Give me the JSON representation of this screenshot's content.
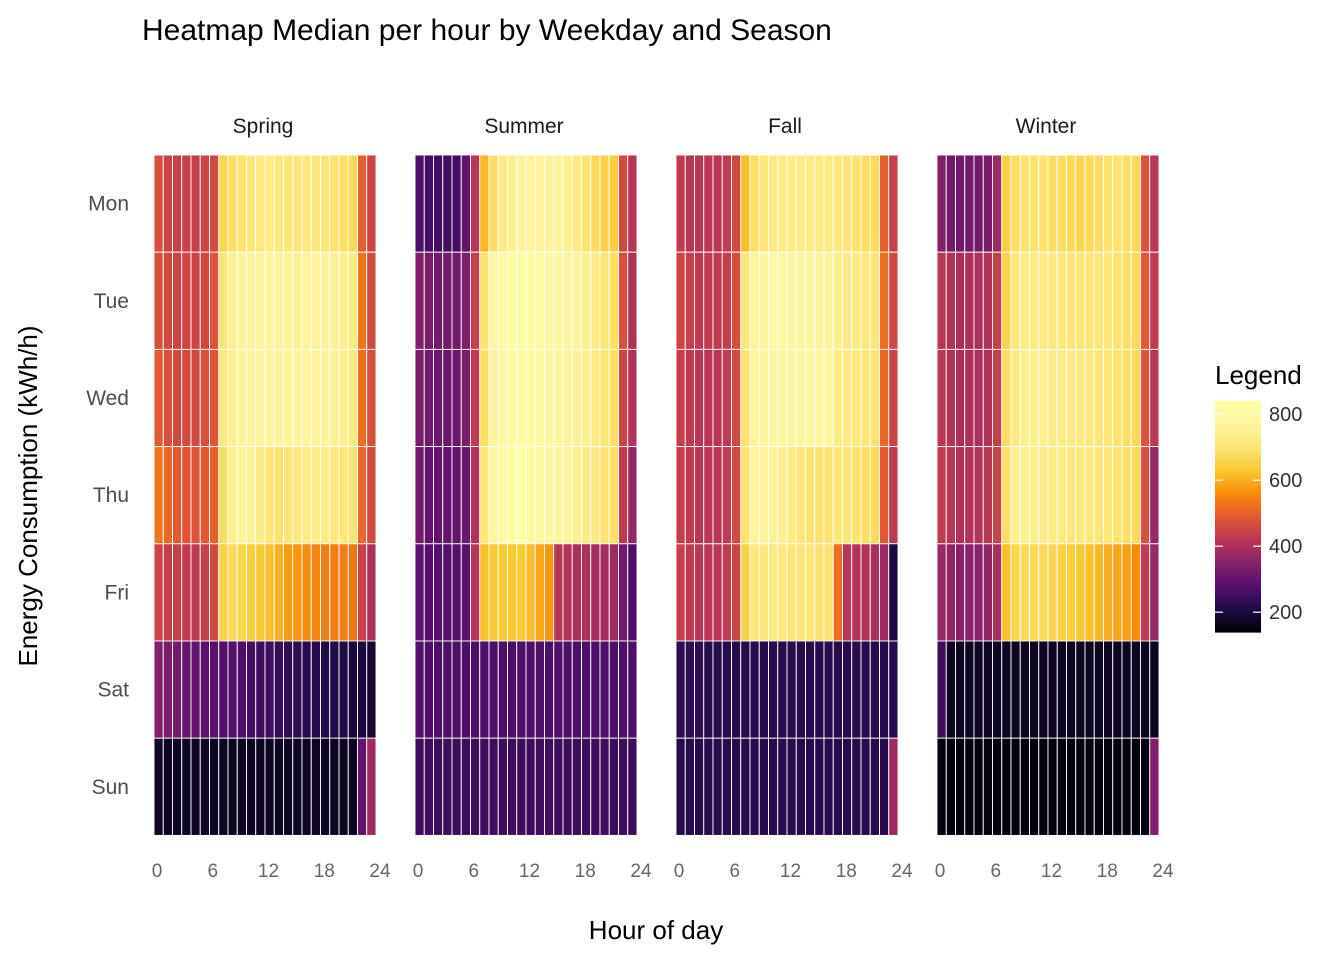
{
  "chart_data": {
    "type": "heatmap",
    "title": "Heatmap Median per hour by Weekday and Season",
    "xlabel": "Hour of day",
    "ylabel": "Energy Consumption (kWh/h)",
    "x_ticks": [
      "0",
      "6",
      "12",
      "18",
      "24"
    ],
    "x_range": [
      0,
      24
    ],
    "hours": [
      0,
      1,
      2,
      3,
      4,
      5,
      6,
      7,
      8,
      9,
      10,
      11,
      12,
      13,
      14,
      15,
      16,
      17,
      18,
      19,
      20,
      21,
      22,
      23
    ],
    "weekdays": [
      "Mon",
      "Tue",
      "Wed",
      "Thu",
      "Fri",
      "Sat",
      "Sun"
    ],
    "facets": [
      "Spring",
      "Summer",
      "Fall",
      "Winter"
    ],
    "legend": {
      "title": "Legend",
      "ticks": [
        "800",
        "600",
        "400",
        "200"
      ],
      "tick_values": [
        800,
        600,
        400,
        200
      ],
      "min": 140,
      "max": 840,
      "palette": "inferno",
      "placement": "right"
    },
    "values": {
      "Spring": {
        "Mon": [
          470,
          450,
          440,
          440,
          440,
          450,
          460,
          660,
          680,
          690,
          700,
          710,
          720,
          710,
          700,
          700,
          710,
          710,
          700,
          690,
          680,
          670,
          500,
          450
        ],
        "Tue": [
          470,
          460,
          450,
          450,
          450,
          460,
          480,
          700,
          740,
          760,
          760,
          760,
          770,
          760,
          760,
          750,
          760,
          760,
          760,
          750,
          740,
          720,
          530,
          460
        ],
        "Wed": [
          490,
          470,
          460,
          460,
          460,
          470,
          480,
          710,
          740,
          760,
          760,
          770,
          760,
          760,
          760,
          760,
          760,
          760,
          760,
          750,
          740,
          720,
          520,
          470
        ],
        "Thu": [
          530,
          510,
          490,
          480,
          480,
          490,
          500,
          680,
          740,
          760,
          750,
          720,
          700,
          690,
          700,
          710,
          720,
          730,
          720,
          710,
          700,
          690,
          510,
          460
        ],
        "Fri": [
          450,
          440,
          440,
          430,
          430,
          440,
          460,
          650,
          670,
          660,
          640,
          630,
          620,
          600,
          580,
          570,
          560,
          550,
          540,
          540,
          540,
          530,
          440,
          400
        ],
        "Sat": [
          340,
          330,
          320,
          300,
          300,
          290,
          290,
          280,
          280,
          270,
          260,
          250,
          250,
          240,
          230,
          230,
          220,
          220,
          210,
          210,
          210,
          200,
          200,
          190
        ],
        "Sun": [
          180,
          170,
          170,
          170,
          170,
          170,
          170,
          170,
          170,
          170,
          170,
          170,
          170,
          170,
          170,
          170,
          170,
          170,
          170,
          170,
          170,
          170,
          300,
          380
        ]
      },
      "Summer": {
        "Mon": [
          270,
          260,
          260,
          260,
          260,
          300,
          420,
          610,
          680,
          720,
          740,
          760,
          760,
          760,
          760,
          760,
          740,
          720,
          690,
          670,
          650,
          640,
          460,
          420
        ],
        "Tue": [
          340,
          330,
          320,
          320,
          320,
          340,
          440,
          690,
          770,
          800,
          810,
          820,
          810,
          800,
          790,
          780,
          770,
          760,
          740,
          720,
          700,
          680,
          470,
          410
        ],
        "Wed": [
          330,
          320,
          310,
          310,
          310,
          330,
          430,
          680,
          760,
          790,
          800,
          810,
          800,
          790,
          780,
          770,
          760,
          750,
          740,
          720,
          700,
          680,
          450,
          410
        ],
        "Thu": [
          320,
          300,
          300,
          300,
          300,
          310,
          410,
          700,
          770,
          800,
          820,
          840,
          800,
          790,
          780,
          770,
          760,
          740,
          730,
          710,
          690,
          680,
          430,
          370
        ],
        "Fri": [
          290,
          280,
          280,
          280,
          280,
          290,
          420,
          620,
          630,
          630,
          630,
          630,
          620,
          590,
          570,
          420,
          410,
          400,
          400,
          390,
          390,
          380,
          320,
          270
        ],
        "Sat": [
          280,
          270,
          270,
          270,
          270,
          270,
          270,
          270,
          270,
          270,
          270,
          270,
          270,
          270,
          270,
          270,
          270,
          270,
          270,
          270,
          270,
          270,
          270,
          270
        ],
        "Sun": [
          250,
          250,
          250,
          250,
          250,
          250,
          250,
          250,
          250,
          250,
          250,
          250,
          250,
          250,
          250,
          250,
          250,
          250,
          250,
          250,
          250,
          250,
          250,
          250
        ]
      },
      "Fall": {
        "Mon": [
          430,
          420,
          420,
          420,
          420,
          430,
          460,
          620,
          680,
          700,
          710,
          720,
          720,
          720,
          720,
          720,
          720,
          710,
          700,
          690,
          680,
          670,
          500,
          440
        ],
        "Tue": [
          450,
          440,
          430,
          430,
          430,
          440,
          470,
          700,
          760,
          780,
          800,
          790,
          780,
          780,
          770,
          770,
          770,
          740,
          730,
          720,
          710,
          700,
          520,
          460
        ],
        "Wed": [
          440,
          430,
          420,
          420,
          420,
          430,
          460,
          690,
          760,
          780,
          780,
          780,
          780,
          780,
          780,
          780,
          780,
          730,
          720,
          710,
          700,
          690,
          510,
          450
        ],
        "Thu": [
          440,
          430,
          420,
          420,
          420,
          430,
          460,
          690,
          760,
          760,
          750,
          740,
          720,
          700,
          690,
          690,
          690,
          700,
          700,
          690,
          680,
          670,
          490,
          430
        ],
        "Fri": [
          440,
          430,
          420,
          420,
          420,
          430,
          450,
          650,
          700,
          710,
          710,
          710,
          700,
          700,
          700,
          690,
          690,
          520,
          420,
          410,
          410,
          400,
          380,
          200
        ],
        "Sat": [
          230,
          230,
          230,
          220,
          220,
          220,
          220,
          220,
          220,
          220,
          220,
          220,
          220,
          220,
          220,
          220,
          220,
          220,
          220,
          220,
          220,
          220,
          220,
          220
        ],
        "Sun": [
          220,
          220,
          220,
          220,
          220,
          220,
          220,
          220,
          220,
          220,
          220,
          220,
          220,
          220,
          220,
          220,
          220,
          220,
          220,
          220,
          220,
          220,
          220,
          380
        ]
      },
      "Winter": {
        "Mon": [
          340,
          320,
          320,
          320,
          320,
          330,
          380,
          650,
          680,
          690,
          690,
          690,
          680,
          680,
          670,
          660,
          670,
          680,
          690,
          690,
          680,
          670,
          480,
          420
        ],
        "Tue": [
          420,
          410,
          400,
          400,
          400,
          410,
          440,
          660,
          710,
          720,
          720,
          720,
          710,
          710,
          700,
          700,
          700,
          700,
          700,
          690,
          680,
          670,
          490,
          430
        ],
        "Wed": [
          420,
          410,
          400,
          400,
          400,
          410,
          440,
          680,
          720,
          740,
          740,
          740,
          730,
          730,
          720,
          720,
          710,
          700,
          700,
          690,
          680,
          670,
          480,
          420
        ],
        "Thu": [
          430,
          420,
          410,
          410,
          410,
          420,
          450,
          680,
          740,
          740,
          740,
          730,
          720,
          720,
          710,
          710,
          710,
          700,
          700,
          690,
          680,
          670,
          470,
          370
        ],
        "Fri": [
          370,
          360,
          350,
          350,
          350,
          360,
          400,
          620,
          660,
          670,
          670,
          670,
          660,
          650,
          640,
          630,
          620,
          610,
          600,
          590,
          580,
          560,
          430,
          370
        ],
        "Sat": [
          250,
          170,
          170,
          170,
          170,
          170,
          170,
          170,
          170,
          170,
          170,
          170,
          170,
          170,
          170,
          170,
          170,
          170,
          170,
          170,
          170,
          170,
          170,
          170
        ],
        "Sun": [
          150,
          150,
          150,
          150,
          150,
          150,
          150,
          150,
          150,
          150,
          150,
          150,
          150,
          150,
          150,
          150,
          150,
          150,
          150,
          150,
          150,
          150,
          150,
          340
        ]
      }
    }
  }
}
